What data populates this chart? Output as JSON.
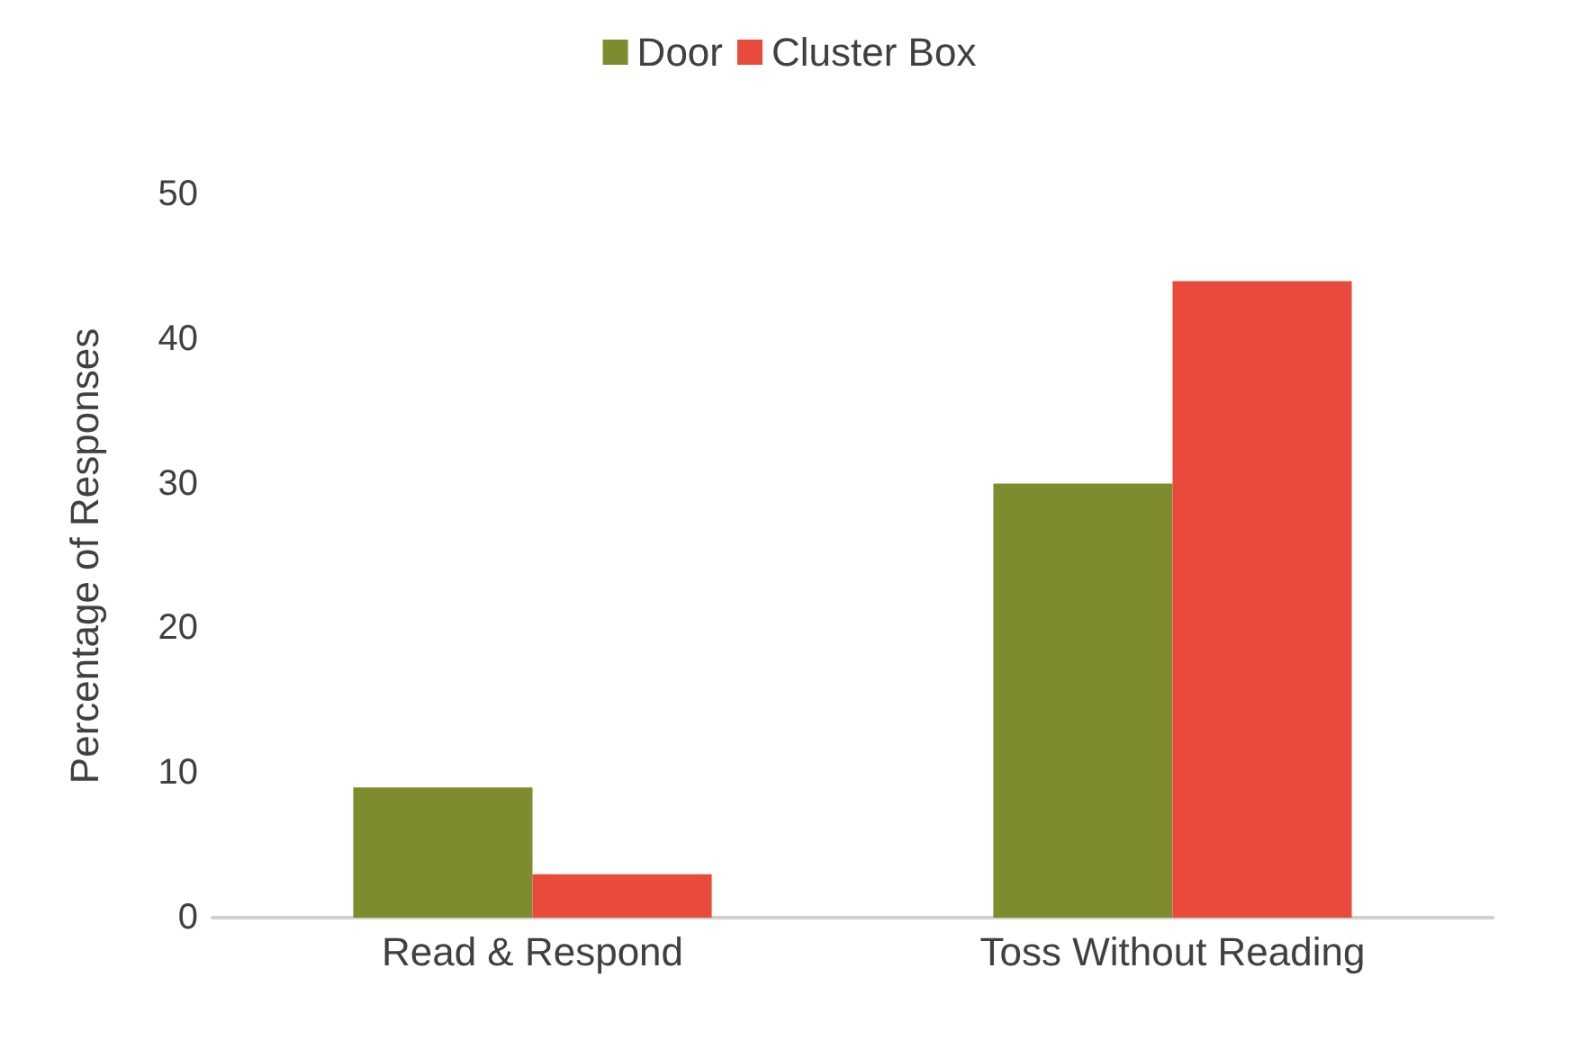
{
  "chart_data": {
    "type": "bar",
    "ylabel": "Percentage of Responses",
    "categories": [
      "Read & Respond",
      "Toss Without Reading"
    ],
    "series": [
      {
        "name": "Door",
        "color": "#7f8b2f",
        "values": [
          9,
          30
        ]
      },
      {
        "name": "Cluster Box",
        "color": "#e84a3b",
        "values": [
          3,
          44
        ]
      }
    ],
    "ylim": [
      0,
      50
    ],
    "yticks": [
      0,
      10,
      20,
      30,
      40,
      50
    ],
    "grid": false,
    "legend": "top"
  }
}
